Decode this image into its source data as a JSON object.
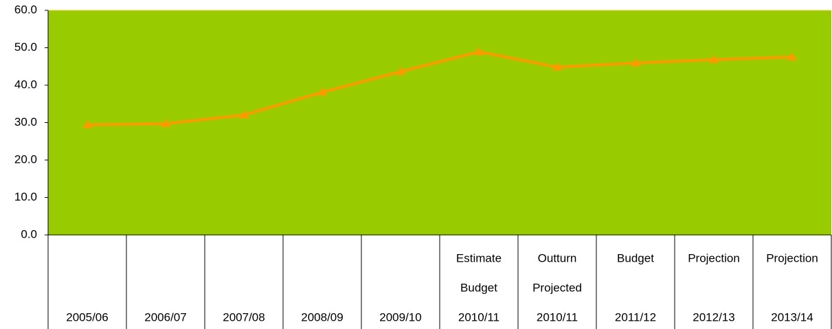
{
  "chart_data": {
    "type": "line",
    "categories": [
      {
        "year": "2005/06"
      },
      {
        "year": "2006/07"
      },
      {
        "year": "2007/08"
      },
      {
        "year": "2008/09"
      },
      {
        "year": "2009/10"
      },
      {
        "top": "Estimate",
        "middle": "Budget",
        "year": "2010/11"
      },
      {
        "top": "Outturn",
        "middle": "Projected",
        "year": "2010/11"
      },
      {
        "top": "Budget",
        "year": "2011/12"
      },
      {
        "top": "Projection",
        "year": "2012/13"
      },
      {
        "top": "Projection",
        "year": "2013/14"
      }
    ],
    "values": [
      29.5,
      29.8,
      32.1,
      38.2,
      43.7,
      49.0,
      44.9,
      46.0,
      46.9,
      47.6
    ],
    "color": "#ff9900",
    "plot_color": "#99cc00",
    "ylim": [
      0,
      60
    ],
    "yticks": [
      {
        "value": 0,
        "label": "0.0"
      },
      {
        "value": 10,
        "label": "10.0"
      },
      {
        "value": 20,
        "label": "20.0"
      },
      {
        "value": 30,
        "label": "30.0"
      },
      {
        "value": 40,
        "label": "40.0"
      },
      {
        "value": 50,
        "label": "50.0"
      },
      {
        "value": 60,
        "label": "60.0"
      }
    ]
  }
}
